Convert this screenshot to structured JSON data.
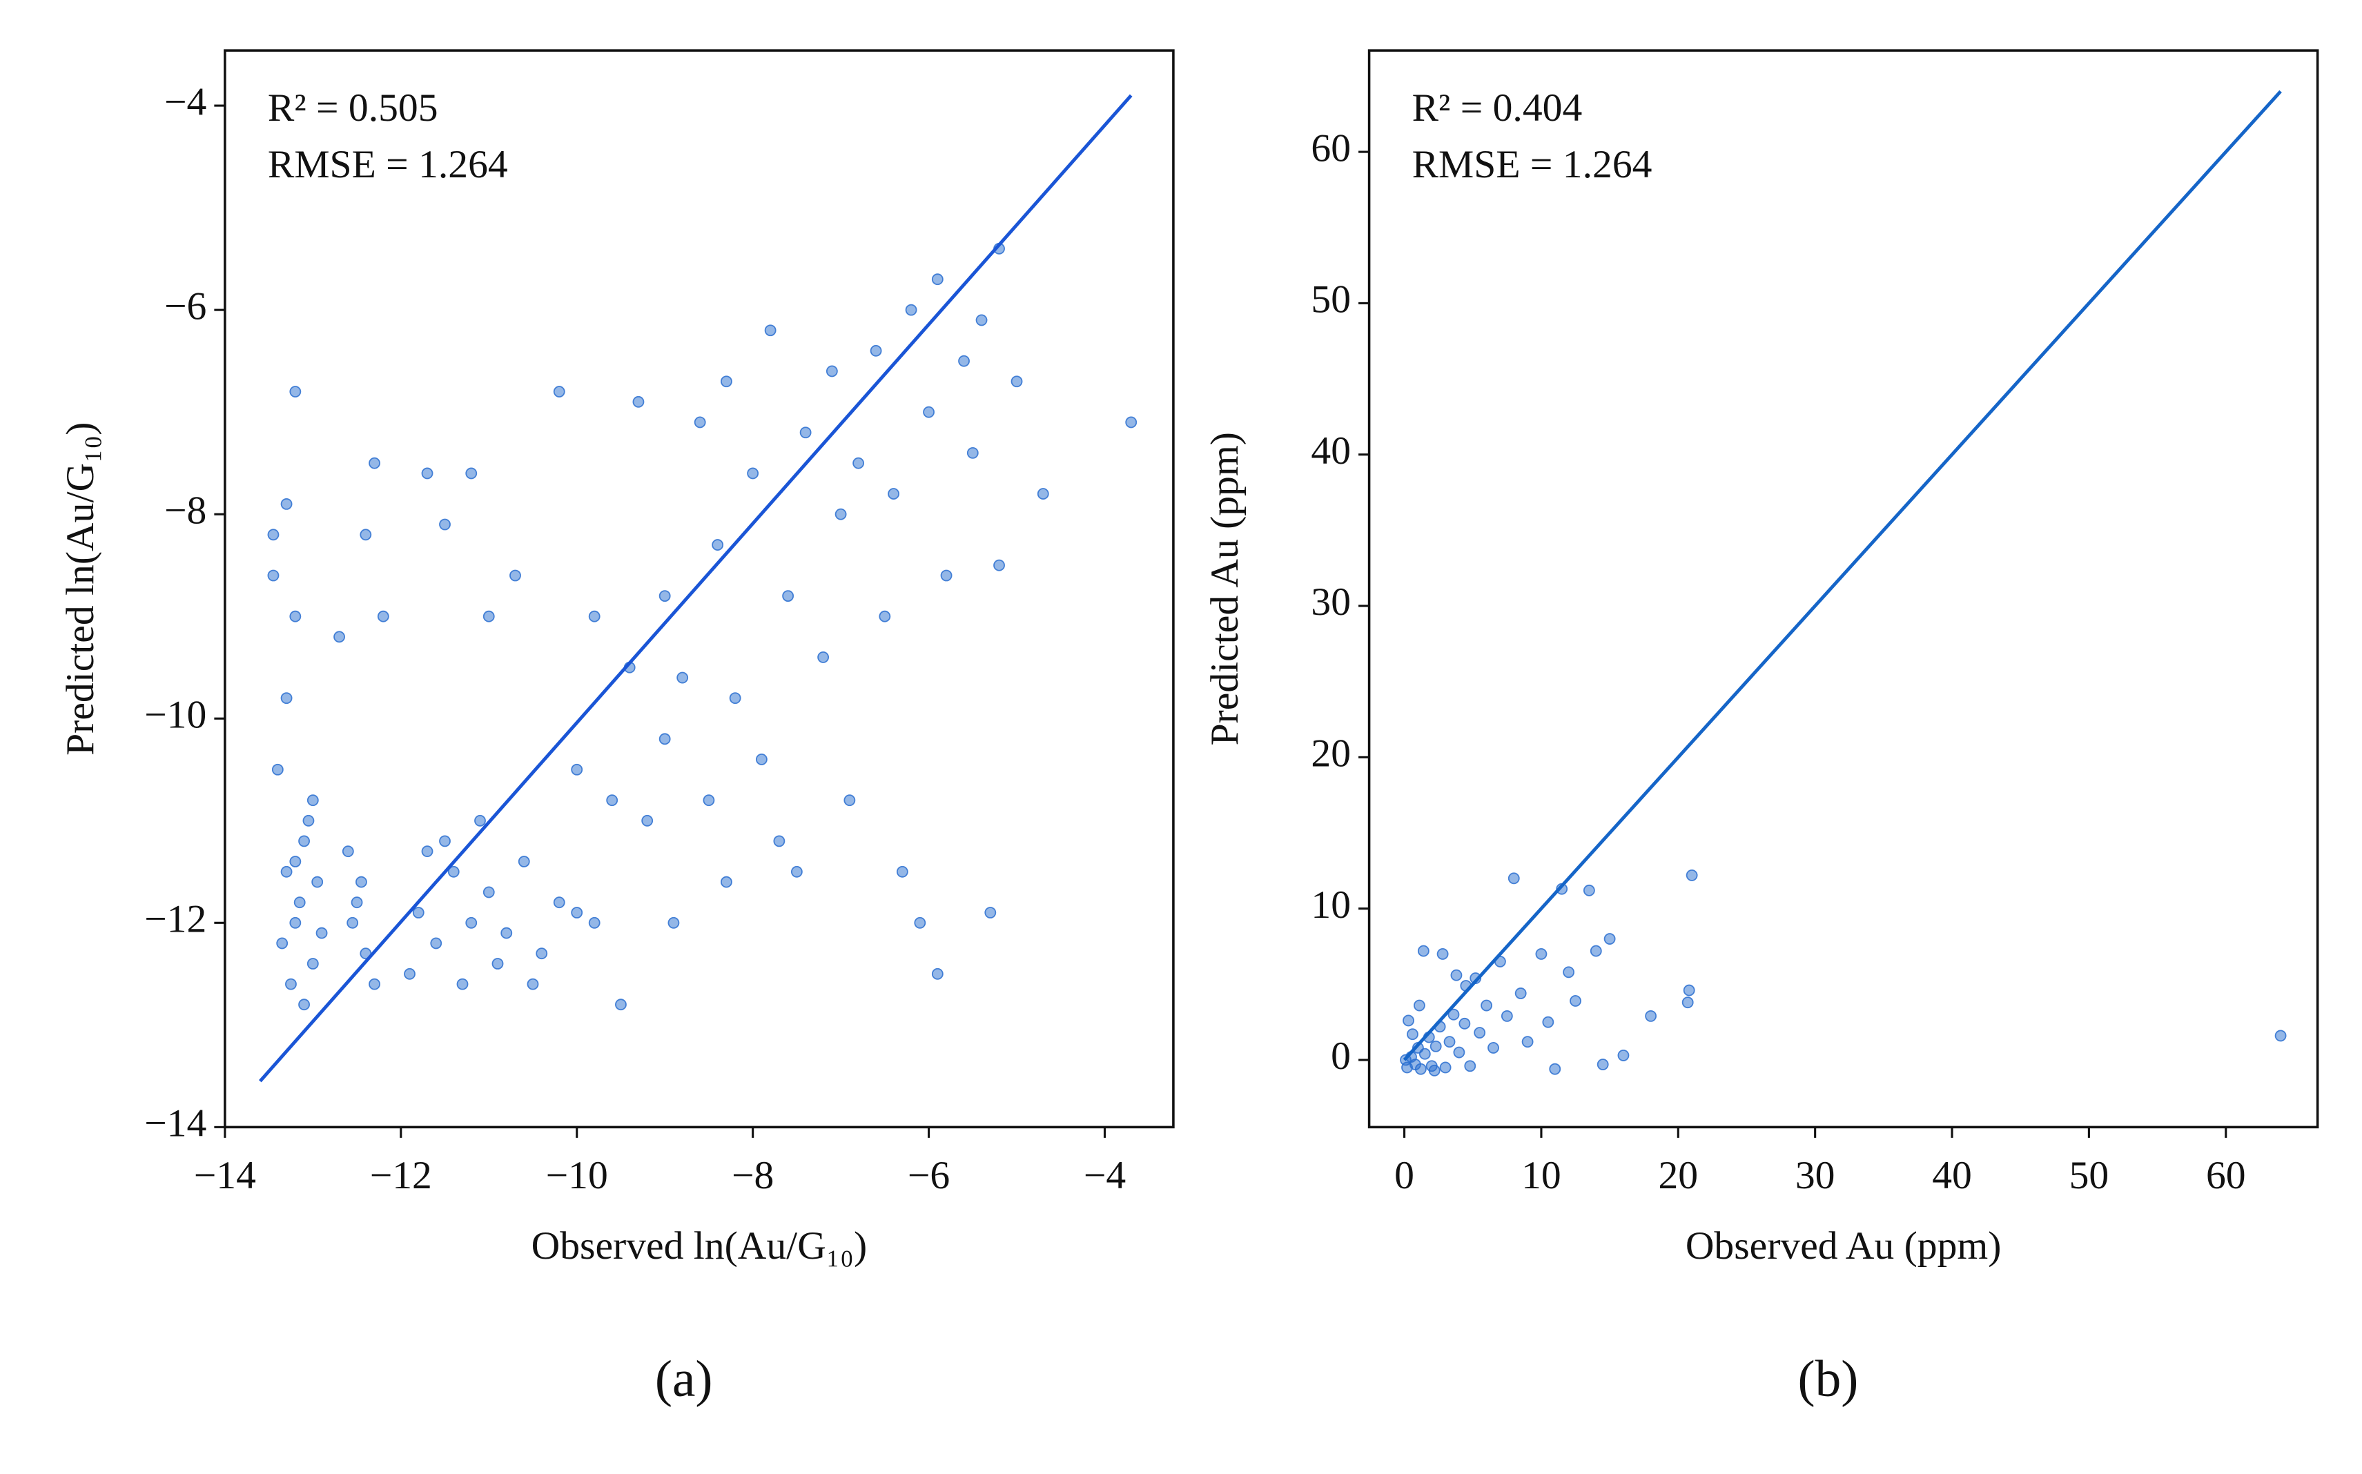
{
  "chart_data": [
    {
      "type": "scatter",
      "caption": "(a)",
      "xlabel": "Observed ln(Au/G₁₀)",
      "ylabel": "Predicted ln(Au/G₁₀)",
      "annotations": [
        "R² = 0.505",
        "RMSE = 1.264"
      ],
      "xlim": [
        -14,
        -3.22
      ],
      "ylim": [
        -14,
        -3.46
      ],
      "xticks": [
        {
          "value": -14,
          "label": "−14"
        },
        {
          "value": -12,
          "label": "−12"
        },
        {
          "value": -10,
          "label": "−10"
        },
        {
          "value": -8,
          "label": "−8"
        },
        {
          "value": -6,
          "label": "−6"
        },
        {
          "value": -4,
          "label": "−4"
        }
      ],
      "yticks": [
        {
          "value": -14,
          "label": "−14"
        },
        {
          "value": -12,
          "label": "−12"
        },
        {
          "value": -10,
          "label": "−10"
        },
        {
          "value": -8,
          "label": "−8"
        },
        {
          "value": -6,
          "label": "−6"
        },
        {
          "value": -4,
          "label": "−4"
        }
      ],
      "series": [
        {
          "color": "#2a6fd0",
          "x": [
            -13.3,
            -13.2,
            -13.1,
            -13.0,
            -13.25,
            -13.15,
            -13.05,
            -12.95,
            -13.35,
            -13.1,
            -13.4,
            -13.3,
            -13.2,
            -13.45,
            -13.3,
            -13.2,
            -13.45,
            -13.0,
            -13.2,
            -12.9,
            -12.5,
            -12.4,
            -12.6,
            -12.3,
            -12.55,
            -12.45,
            -12.7,
            -12.3,
            -12.4,
            -12.2,
            -11.8,
            -11.6,
            -11.4,
            -11.2,
            -11.0,
            -10.8,
            -10.6,
            -10.4,
            -10.2,
            -11.9,
            -11.5,
            -11.1,
            -10.9,
            -10.5,
            -11.7,
            -11.3,
            -10.0,
            -9.8,
            -11.7,
            -11.5,
            -11.2,
            -11.0,
            -10.7,
            -10.2,
            -10.0,
            -9.8,
            -9.6,
            -9.4,
            -9.2,
            -9.0,
            -9.0,
            -8.8,
            -8.6,
            -8.5,
            -8.4,
            -8.2,
            -8.0,
            -7.9,
            -7.8,
            -7.6,
            -7.5,
            -7.4,
            -7.2,
            -7.1,
            -7.0,
            -6.9,
            -6.8,
            -6.6,
            -6.5,
            -6.4,
            -6.3,
            -6.2,
            -6.1,
            -6.0,
            -5.9,
            -5.9,
            -5.8,
            -5.6,
            -5.5,
            -5.4,
            -5.3,
            -5.2,
            -5.2,
            -5.0,
            -4.7,
            -3.7,
            -9.5,
            -8.9,
            -8.3,
            -7.7,
            -9.3,
            -8.3
          ],
          "values": [
            -11.5,
            -12.0,
            -11.2,
            -12.4,
            -12.6,
            -11.8,
            -11.0,
            -11.6,
            -12.2,
            -12.8,
            -10.5,
            -9.8,
            -9.0,
            -8.6,
            -7.9,
            -6.8,
            -8.2,
            -10.8,
            -11.4,
            -12.1,
            -11.8,
            -12.3,
            -11.3,
            -12.6,
            -12.0,
            -11.6,
            -9.2,
            -7.5,
            -8.2,
            -9.0,
            -11.9,
            -12.2,
            -11.5,
            -12.0,
            -11.7,
            -12.1,
            -11.4,
            -12.3,
            -11.8,
            -12.5,
            -11.2,
            -11.0,
            -12.4,
            -12.6,
            -11.3,
            -12.6,
            -11.9,
            -12.0,
            -7.6,
            -8.1,
            -7.6,
            -9.0,
            -8.6,
            -6.8,
            -10.5,
            -9.0,
            -10.8,
            -9.5,
            -11.0,
            -8.8,
            -10.2,
            -9.6,
            -7.1,
            -10.8,
            -8.3,
            -9.8,
            -7.6,
            -10.4,
            -6.2,
            -8.8,
            -11.5,
            -7.2,
            -9.4,
            -6.6,
            -8.0,
            -10.8,
            -7.5,
            -6.4,
            -9.0,
            -7.8,
            -11.5,
            -6.0,
            -12.0,
            -7.0,
            -5.7,
            -12.5,
            -8.6,
            -6.5,
            -7.4,
            -6.1,
            -11.9,
            -5.4,
            -8.5,
            -6.7,
            -7.8,
            -7.1,
            -12.8,
            -12.0,
            -11.6,
            -11.2,
            -6.9,
            -6.7
          ]
        },
        {
          "type": "line",
          "color": "#1a55d6",
          "x": [
            -13.6,
            -3.7
          ],
          "values": [
            -13.55,
            -3.9
          ]
        }
      ]
    },
    {
      "type": "scatter",
      "caption": "(b)",
      "xlabel": "Observed Au (ppm)",
      "ylabel": "Predicted Au (ppm)",
      "annotations": [
        "R² = 0.404",
        "RMSE = 1.264"
      ],
      "xlim": [
        -2.57,
        66.7
      ],
      "ylim": [
        -4.44,
        66.7
      ],
      "xticks": [
        0,
        10,
        20,
        30,
        40,
        50,
        60
      ],
      "yticks": [
        0,
        10,
        20,
        30,
        40,
        50,
        60
      ],
      "series": [
        {
          "color": "#2a6fd0",
          "x": [
            0.2,
            0.5,
            0.8,
            1.0,
            1.2,
            1.5,
            1.8,
            2.0,
            2.3,
            2.6,
            3.0,
            3.3,
            3.6,
            4.0,
            4.4,
            4.8,
            5.2,
            5.5,
            6.0,
            6.5,
            7.0,
            7.5,
            8.0,
            8.5,
            9.0,
            10.0,
            10.5,
            11.0,
            11.5,
            12.0,
            12.5,
            13.5,
            14.0,
            14.5,
            15.0,
            16.0,
            18.0,
            21.0,
            20.8,
            20.7,
            64.0,
            0.3,
            0.6,
            1.4,
            2.8,
            3.8,
            4.5,
            1.1,
            0.1,
            2.2
          ],
          "values": [
            -0.5,
            0.2,
            -0.3,
            0.8,
            -0.6,
            0.4,
            1.5,
            -0.4,
            0.9,
            2.2,
            -0.5,
            1.2,
            3.0,
            0.5,
            2.4,
            -0.4,
            5.4,
            1.8,
            3.6,
            0.8,
            6.5,
            2.9,
            12.0,
            4.4,
            1.2,
            7.0,
            2.5,
            -0.6,
            11.3,
            5.8,
            3.9,
            11.2,
            7.2,
            -0.3,
            8.0,
            0.3,
            2.9,
            12.2,
            4.6,
            3.8,
            1.6,
            2.6,
            1.7,
            7.2,
            7.0,
            5.6,
            4.9,
            3.6,
            0.0,
            -0.7
          ]
        },
        {
          "type": "line",
          "color": "#1565c8",
          "x": [
            0,
            64
          ],
          "values": [
            0,
            64
          ]
        }
      ]
    }
  ]
}
